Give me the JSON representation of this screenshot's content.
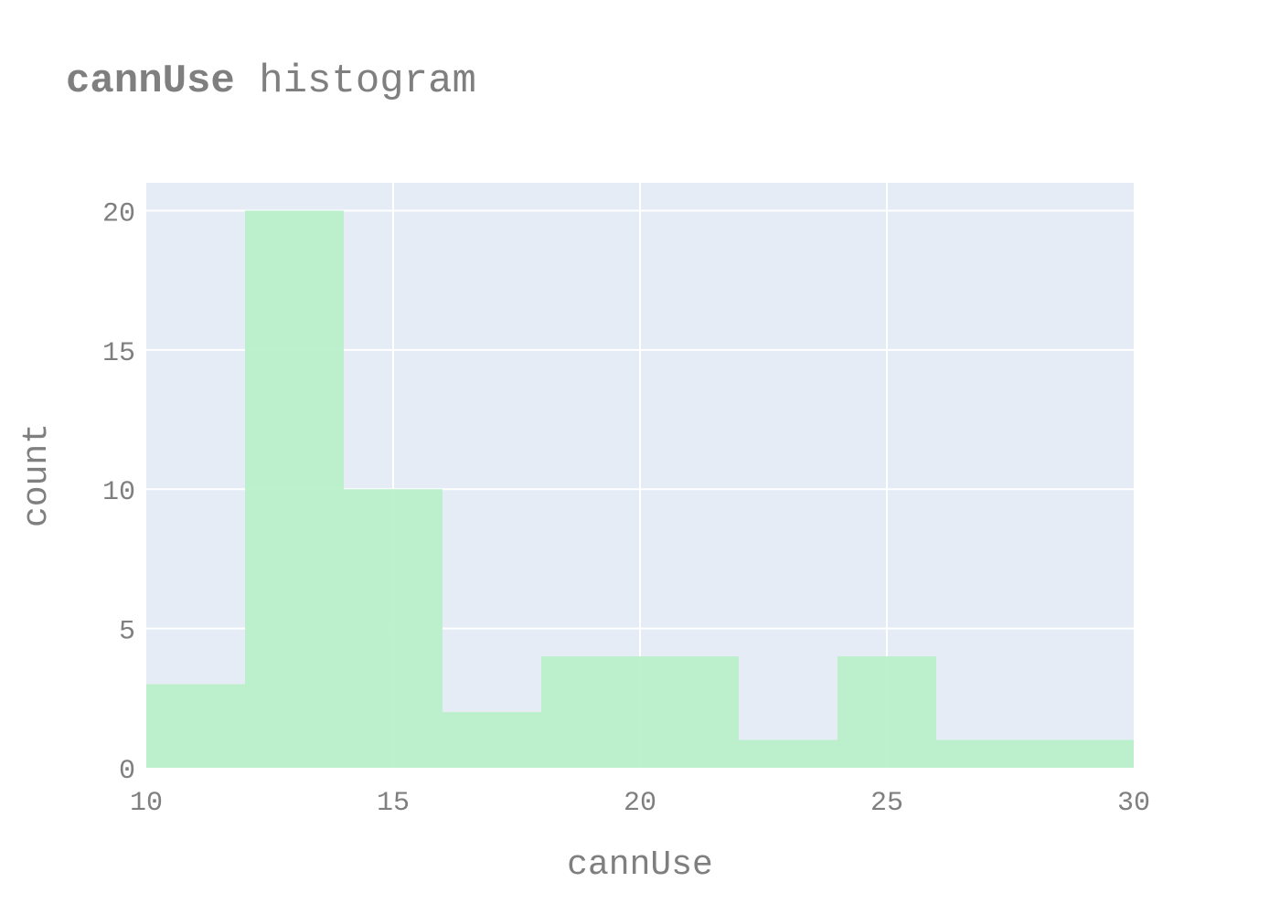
{
  "title": {
    "bold": "cannUse",
    "rest": " histogram"
  },
  "colors": {
    "plot_bg": "#e5ecf6",
    "grid": "#ffffff",
    "bar": "#b9f0c9",
    "text": "#7f7f7f"
  },
  "chart_data": {
    "type": "bar",
    "histogram": true,
    "bins": [
      {
        "x0": 10,
        "x1": 12,
        "count": 3
      },
      {
        "x0": 12,
        "x1": 14,
        "count": 20
      },
      {
        "x0": 14,
        "x1": 16,
        "count": 10
      },
      {
        "x0": 16,
        "x1": 18,
        "count": 2
      },
      {
        "x0": 18,
        "x1": 20,
        "count": 4
      },
      {
        "x0": 20,
        "x1": 22,
        "count": 4
      },
      {
        "x0": 22,
        "x1": 24,
        "count": 1
      },
      {
        "x0": 24,
        "x1": 26,
        "count": 4
      },
      {
        "x0": 26,
        "x1": 28,
        "count": 1
      },
      {
        "x0": 28,
        "x1": 30,
        "count": 1
      }
    ],
    "xlabel": "cannUse",
    "ylabel": "count",
    "xlim": [
      10,
      30
    ],
    "ylim": [
      0,
      21
    ],
    "xticks": [
      10,
      15,
      20,
      25,
      30
    ],
    "yticks": [
      0,
      5,
      10,
      15,
      20
    ],
    "grid": true
  }
}
